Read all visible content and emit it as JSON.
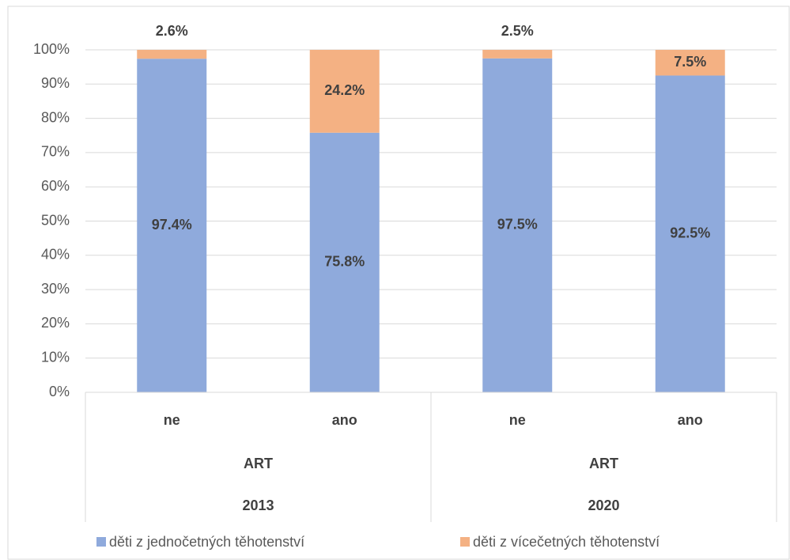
{
  "chart_data": {
    "type": "stacked_bar",
    "categories": [
      "ne",
      "ano",
      "ne",
      "ano"
    ],
    "group_labels": [
      "ART",
      "ART"
    ],
    "years": [
      "2013",
      "2020"
    ],
    "series": [
      {
        "name": "děti z jednočetných těhotenství",
        "color": "#8faadc",
        "values": [
          97.4,
          75.8,
          97.5,
          92.5
        ],
        "value_labels": [
          "97.4%",
          "75.8%",
          "97.5%",
          "92.5%"
        ]
      },
      {
        "name": "děti z vícečetných těhotenství",
        "color": "#f4b183",
        "values": [
          2.6,
          24.2,
          2.5,
          7.5
        ],
        "value_labels": [
          "2.6%",
          "24.2%",
          "2.5%",
          "7.5%"
        ]
      }
    ],
    "ylim": [
      0,
      100
    ],
    "yticks": [
      {
        "value": 0,
        "label": "0%"
      },
      {
        "value": 10,
        "label": "10%"
      },
      {
        "value": 20,
        "label": "20%"
      },
      {
        "value": 30,
        "label": "30%"
      },
      {
        "value": 40,
        "label": "40%"
      },
      {
        "value": 50,
        "label": "50%"
      },
      {
        "value": 60,
        "label": "60%"
      },
      {
        "value": 70,
        "label": "70%"
      },
      {
        "value": 80,
        "label": "80%"
      },
      {
        "value": 90,
        "label": "90%"
      },
      {
        "value": 100,
        "label": "100%"
      }
    ],
    "grid": true
  }
}
